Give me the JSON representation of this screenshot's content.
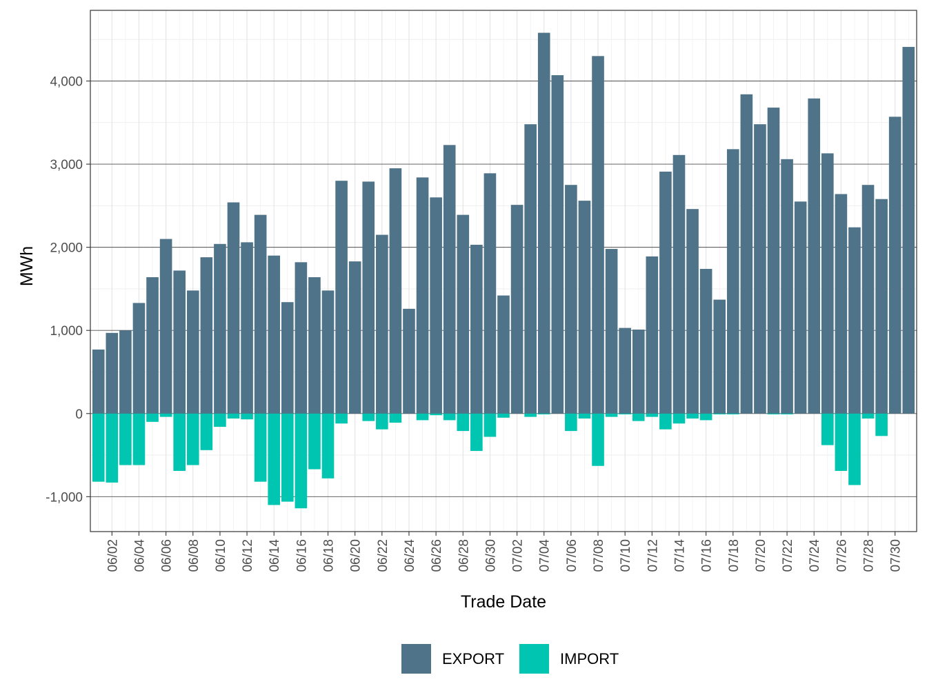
{
  "chart_data": {
    "type": "bar",
    "stacked": true,
    "xlabel": "Trade Date",
    "ylabel": "MWh",
    "ylim": [
      -1420,
      4850
    ],
    "yticks": [
      -1000,
      0,
      1000,
      2000,
      3000,
      4000
    ],
    "ytick_labels": [
      "-1,000",
      "0",
      "1,000",
      "2,000",
      "3,000",
      "4,000"
    ],
    "grid": true,
    "legend_position": "bottom",
    "categories": [
      "06/01",
      "06/02",
      "06/03",
      "06/04",
      "06/05",
      "06/06",
      "06/07",
      "06/08",
      "06/09",
      "06/10",
      "06/11",
      "06/12",
      "06/13",
      "06/14",
      "06/15",
      "06/16",
      "06/17",
      "06/18",
      "06/19",
      "06/20",
      "06/21",
      "06/22",
      "06/23",
      "06/24",
      "06/25",
      "06/26",
      "06/27",
      "06/28",
      "06/29",
      "06/30",
      "07/01",
      "07/02",
      "07/03",
      "07/04",
      "07/05",
      "07/06",
      "07/07",
      "07/08",
      "07/09",
      "07/10",
      "07/11",
      "07/12",
      "07/13",
      "07/14",
      "07/15",
      "07/16",
      "07/17",
      "07/18",
      "07/19",
      "07/20",
      "07/21",
      "07/22",
      "07/23",
      "07/24",
      "07/25",
      "07/26",
      "07/27",
      "07/28",
      "07/29",
      "07/30",
      "07/31"
    ],
    "xtick_labels": [
      "06/02",
      "06/04",
      "06/06",
      "06/08",
      "06/10",
      "06/12",
      "06/14",
      "06/16",
      "06/18",
      "06/20",
      "06/22",
      "06/24",
      "06/26",
      "06/28",
      "06/30",
      "07/02",
      "07/04",
      "07/06",
      "07/08",
      "07/10",
      "07/12",
      "07/14",
      "07/16",
      "07/18",
      "07/20",
      "07/22",
      "07/24",
      "07/26",
      "07/28",
      "07/30"
    ],
    "series": [
      {
        "name": "EXPORT",
        "color": "#4f7388",
        "values": [
          770,
          970,
          1000,
          1330,
          1640,
          2100,
          1720,
          1480,
          1880,
          2040,
          2540,
          2060,
          2390,
          1900,
          1340,
          1820,
          1640,
          1480,
          2800,
          1830,
          2790,
          2150,
          2950,
          1260,
          2840,
          2600,
          3230,
          2390,
          2030,
          2890,
          1420,
          2510,
          3480,
          4580,
          4070,
          2750,
          2560,
          4300,
          1980,
          1030,
          1010,
          1890,
          2910,
          3110,
          2460,
          1740,
          1370,
          3180,
          3840,
          3480,
          3680,
          3060,
          2550,
          3790,
          3130,
          2640,
          2240,
          2750,
          2580,
          3570,
          4410
        ]
      },
      {
        "name": "IMPORT",
        "color": "#00c6b1",
        "values": [
          -820,
          -830,
          -620,
          -620,
          -100,
          -40,
          -690,
          -620,
          -440,
          -160,
          -60,
          -70,
          -820,
          -1100,
          -1060,
          -1140,
          -670,
          -780,
          -120,
          0,
          -90,
          -190,
          -110,
          0,
          -80,
          -20,
          -80,
          -210,
          -450,
          -280,
          -50,
          0,
          -40,
          -10,
          0,
          -210,
          -60,
          -630,
          -40,
          -10,
          -90,
          -40,
          -190,
          -120,
          -60,
          -80,
          -10,
          -10,
          0,
          0,
          -10,
          -10,
          0,
          0,
          -380,
          -690,
          -860,
          -60,
          -270,
          0,
          0
        ]
      }
    ]
  }
}
